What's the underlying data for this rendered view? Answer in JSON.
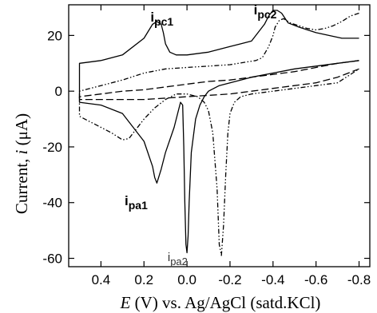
{
  "chart_data": {
    "type": "line",
    "title": "",
    "xlabel_parts": {
      "E": "E",
      "rest": " (V) vs. Ag/AgCl (satd.KCl)"
    },
    "ylabel_parts": {
      "main": "Current, ",
      "i": "i",
      "unit": " (μA)"
    },
    "xlim": [
      0.55,
      -0.85
    ],
    "ylim": [
      -63,
      31
    ],
    "x_reversed": true,
    "grid": false,
    "legend": "none",
    "x_ticks": [
      0.4,
      0.2,
      0.0,
      -0.2,
      -0.4,
      -0.6,
      -0.8
    ],
    "x_tick_labels": [
      "0.4",
      "0.2",
      "0.0",
      "-0.2",
      "-0.4",
      "-0.6",
      "-0.8"
    ],
    "y_ticks": [
      20,
      0,
      -20,
      -40,
      -60
    ],
    "y_tick_labels": [
      "20",
      "0",
      "-20",
      "-40",
      "-60"
    ],
    "annotations": [
      {
        "base": "i",
        "sub": "pc1",
        "style": "bold",
        "x": 0.17,
        "y": 25.0
      },
      {
        "base": "i",
        "sub": "pc2",
        "style": "bold",
        "x": -0.31,
        "y": 27.5
      },
      {
        "base": "i",
        "sub": "pa1",
        "style": "bold",
        "x": 0.29,
        "y": -41.0
      },
      {
        "base": "i",
        "sub": "pa2",
        "style": "light",
        "x": 0.09,
        "y": -61.0
      }
    ],
    "series": [
      {
        "style": "solid",
        "x": [
          -0.8,
          -0.72,
          -0.6,
          -0.52,
          -0.47,
          -0.44,
          -0.42,
          -0.4,
          -0.38,
          -0.36,
          -0.34,
          -0.32,
          -0.3,
          -0.25,
          -0.2,
          -0.1,
          0.0,
          0.05,
          0.08,
          0.1,
          0.11,
          0.12,
          0.14,
          0.16,
          0.2,
          0.3,
          0.4,
          0.5,
          0.5,
          0.4,
          0.3,
          0.2,
          0.16,
          0.15,
          0.14,
          0.12,
          0.1,
          0.06,
          0.04,
          0.03,
          0.02,
          0.015,
          0.01,
          0.005,
          0.0,
          -0.005,
          -0.01,
          -0.02,
          -0.04,
          -0.06,
          -0.08,
          -0.1,
          -0.15,
          -0.2,
          -0.3,
          -0.4,
          -0.5,
          -0.6,
          -0.7,
          -0.8
        ],
        "y": [
          19,
          19,
          21,
          23,
          24.5,
          28,
          29,
          29,
          27,
          24,
          22,
          20,
          18,
          17,
          16,
          14,
          13,
          13,
          14,
          17,
          21,
          24,
          25,
          24,
          19,
          13,
          11,
          10,
          -4,
          -5,
          -8,
          -18,
          -27,
          -31,
          -33,
          -28,
          -22,
          -13,
          -7,
          -4,
          -5,
          -20,
          -40,
          -55,
          -58,
          -52,
          -40,
          -22,
          -10,
          -5,
          -2,
          0,
          2,
          3,
          5,
          6.5,
          8,
          9,
          10,
          11
        ]
      },
      {
        "style": "dash",
        "x": [
          -0.8,
          -0.7,
          -0.6,
          -0.5,
          -0.4,
          -0.3,
          -0.2,
          -0.1,
          0.0,
          0.1,
          0.2,
          0.3,
          0.4,
          0.5,
          0.5,
          0.4,
          0.3,
          0.2,
          0.1,
          0.0,
          -0.1,
          -0.2,
          -0.3,
          -0.4,
          -0.5,
          -0.6,
          -0.7,
          -0.8
        ],
        "y": [
          11,
          10,
          8.5,
          7,
          6,
          5,
          4,
          3.5,
          2.5,
          1.5,
          0.5,
          0,
          -1,
          -2,
          -3,
          -3,
          -3,
          -3,
          -2.5,
          -2,
          -1.5,
          -1,
          0,
          1,
          2,
          3,
          5,
          8
        ]
      },
      {
        "style": "dashdotdot",
        "x": [
          -0.8,
          -0.76,
          -0.72,
          -0.68,
          -0.64,
          -0.6,
          -0.56,
          -0.52,
          -0.48,
          -0.45,
          -0.43,
          -0.41,
          -0.4,
          -0.38,
          -0.35,
          -0.32,
          -0.28,
          -0.24,
          -0.2,
          -0.1,
          0.0,
          0.1,
          0.2,
          0.3,
          0.4,
          0.5,
          0.5,
          0.45,
          0.4,
          0.35,
          0.3,
          0.27,
          0.24,
          0.2,
          0.15,
          0.1,
          0.05,
          0.0,
          -0.05,
          -0.08,
          -0.1,
          -0.12,
          -0.14,
          -0.15,
          -0.16,
          -0.17,
          -0.18,
          -0.19,
          -0.2,
          -0.22,
          -0.25,
          -0.3,
          -0.4,
          -0.5,
          -0.6,
          -0.7,
          -0.8
        ],
        "y": [
          28,
          27,
          25,
          23.5,
          22.5,
          22,
          22.5,
          23.5,
          24.5,
          26,
          25.5,
          23,
          20,
          16,
          12,
          11,
          10.5,
          10,
          9.5,
          9,
          8.5,
          8,
          6.5,
          4,
          2,
          0,
          -9,
          -11,
          -13,
          -15,
          -17.5,
          -17,
          -14,
          -10,
          -6,
          -3,
          -1,
          -1,
          -2,
          -4,
          -7,
          -15,
          -35,
          -55,
          -59,
          -48,
          -30,
          -15,
          -8,
          -4,
          -2,
          -1,
          0,
          1,
          2,
          3,
          8
        ]
      }
    ]
  }
}
